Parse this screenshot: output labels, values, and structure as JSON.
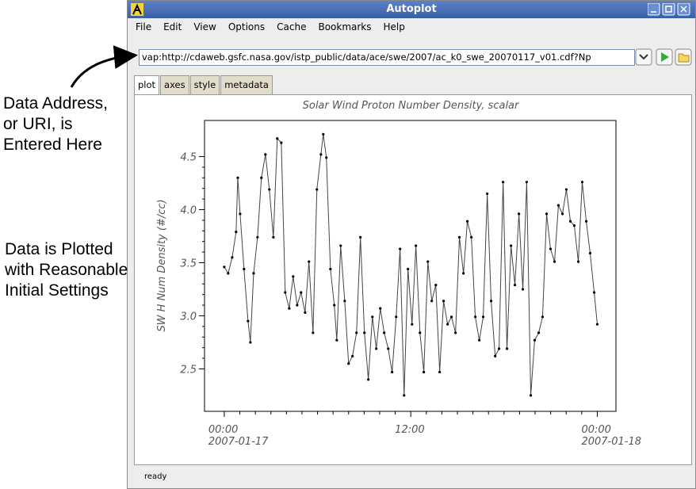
{
  "window": {
    "title": "Autoplot"
  },
  "menu": [
    "File",
    "Edit",
    "View",
    "Options",
    "Cache",
    "Bookmarks",
    "Help"
  ],
  "uri": "vap:http://cdaweb.gsfc.nasa.gov/istp_public/data/ace/swe/2007/ac_k0_swe_20070117_v01.cdf?Np",
  "tabs": [
    "plot",
    "axes",
    "style",
    "metadata"
  ],
  "status": "ready",
  "annotations": [
    [
      "Data Address,",
      "or URI, is",
      "Entered Here"
    ],
    [
      "Data is Plotted",
      "with Reasonable",
      "Initial Settings"
    ]
  ],
  "chart_data": {
    "type": "line",
    "title": "Solar Wind Proton Number Density, scalar",
    "y_label": "SW H Num Density (#/cc)",
    "color": "#444444",
    "x": [
      0,
      0.25,
      0.51,
      0.76,
      0.87,
      1.02,
      1.27,
      1.53,
      1.68,
      1.89,
      2.14,
      2.39,
      2.65,
      2.9,
      3.16,
      3.41,
      3.67,
      3.92,
      4.18,
      4.43,
      4.69,
      4.94,
      5.2,
      5.45,
      5.71,
      5.96,
      6.22,
      6.37,
      6.57,
      6.83,
      7.08,
      7.24,
      7.49,
      7.75,
      8.0,
      8.25,
      8.51,
      8.76,
      9.02,
      9.27,
      9.53,
      9.78,
      10.04,
      10.29,
      10.55,
      10.8,
      11.06,
      11.31,
      11.57,
      11.82,
      12.08,
      12.33,
      12.59,
      12.84,
      13.1,
      13.35,
      13.61,
      13.86,
      14.11,
      14.37,
      14.62,
      14.88,
      15.13,
      15.39,
      15.64,
      15.9,
      16.15,
      16.41,
      16.66,
      16.92,
      17.17,
      17.43,
      17.68,
      17.94,
      18.19,
      18.45,
      18.7,
      18.96,
      19.21,
      19.46,
      19.72,
      19.97,
      20.23,
      20.48,
      20.74,
      20.99,
      21.25,
      21.5,
      21.76,
      22.01,
      22.27,
      22.52,
      22.78,
      23.03,
      23.29,
      23.54,
      23.8,
      24.0
    ],
    "values": [
      3.46,
      3.4,
      3.55,
      3.79,
      4.3,
      3.96,
      3.44,
      2.95,
      2.75,
      3.4,
      3.74,
      4.3,
      4.52,
      4.19,
      3.74,
      4.67,
      4.63,
      3.22,
      3.07,
      3.37,
      3.1,
      3.22,
      3.03,
      3.51,
      2.84,
      4.19,
      4.52,
      4.71,
      4.49,
      3.44,
      3.1,
      2.77,
      3.66,
      3.14,
      2.55,
      2.62,
      2.84,
      3.74,
      2.84,
      2.4,
      2.99,
      2.69,
      3.07,
      2.84,
      2.69,
      2.47,
      2.99,
      3.63,
      2.25,
      3.44,
      2.92,
      3.66,
      2.84,
      2.47,
      3.51,
      3.14,
      3.29,
      2.47,
      3.14,
      2.92,
      2.99,
      2.84,
      3.74,
      3.4,
      3.89,
      3.74,
      2.99,
      2.77,
      2.99,
      4.15,
      3.14,
      2.62,
      2.69,
      4.26,
      2.69,
      3.66,
      3.29,
      3.96,
      3.25,
      4.26,
      2.25,
      2.77,
      2.84,
      2.99,
      3.96,
      3.63,
      3.51,
      4.04,
      3.96,
      4.19,
      3.89,
      3.85,
      3.51,
      4.26,
      3.89,
      3.59,
      3.22,
      2.92
    ],
    "xlim": [
      -1.27,
      25.2
    ],
    "ylim": [
      2.1,
      4.84
    ],
    "xticks": [
      {
        "value": 0,
        "label": [
          "00:00",
          "2007-01-17"
        ]
      },
      {
        "value": 12,
        "label": "12:00"
      },
      {
        "value": 24,
        "label": [
          "00:00",
          "2007-01-18"
        ]
      }
    ],
    "yticks": [
      2.5,
      {
        "value": 3,
        "label": "3.0"
      },
      3.5,
      {
        "value": 4,
        "label": "4.0"
      },
      4.5
    ]
  }
}
